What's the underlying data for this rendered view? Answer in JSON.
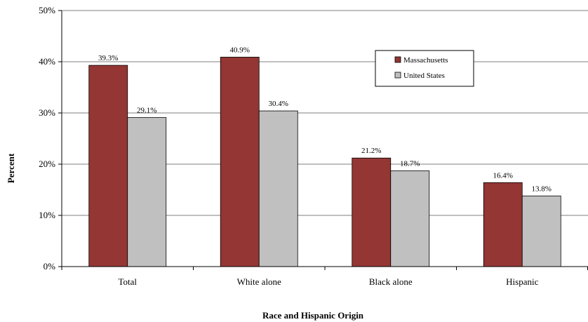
{
  "chart_data": {
    "type": "bar",
    "title": "",
    "xlabel": "Race and Hispanic Origin",
    "ylabel": "Percent",
    "categories": [
      "Total",
      "White alone",
      "Black alone",
      "Hispanic"
    ],
    "series": [
      {
        "name": "Massachusetts",
        "values": [
          39.3,
          40.9,
          21.2,
          16.4
        ],
        "labels": [
          "39.3%",
          "40.9%",
          "21.2%",
          "16.4%"
        ],
        "color": "#943634"
      },
      {
        "name": "United States",
        "values": [
          29.1,
          30.4,
          18.7,
          13.8
        ],
        "labels": [
          "29.1%",
          "30.4%",
          "18.7%",
          "13.8%"
        ],
        "color": "#c0c0c0"
      }
    ],
    "ylim": [
      0,
      50
    ],
    "yticks": [
      "0%",
      "10%",
      "20%",
      "30%",
      "40%",
      "50%"
    ],
    "grid": true,
    "legend_position": "top-right"
  }
}
